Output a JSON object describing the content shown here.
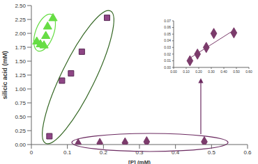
{
  "chart_data": [
    {
      "type": "scatter",
      "xlabel": "[P] (mM)",
      "ylabel": "silicic acid (mM)",
      "xlim": [
        0,
        0.6
      ],
      "xticks": [
        0,
        0.1,
        0.2,
        0.3,
        0.4,
        0.5,
        0.6
      ],
      "ylim": [
        0,
        2.5
      ],
      "yticks": [
        {
          "value": 0,
          "label": "0.00"
        },
        {
          "value": 0.25,
          "label": "0.25"
        },
        {
          "value": 0.5,
          "label": "0.50"
        },
        {
          "value": 0.75,
          "label": "0.75"
        },
        {
          "value": 1,
          "label": "1.00"
        },
        {
          "value": 1.25,
          "label": "1.25"
        },
        {
          "value": 1.5,
          "label": "1.50"
        },
        {
          "value": 1.75,
          "label": "1.75"
        },
        {
          "value": 2,
          "label": "2.00"
        },
        {
          "value": 2.25,
          "label": "2.25"
        },
        {
          "value": 2.5,
          "label": "2.50"
        }
      ],
      "grid": false,
      "series": [
        {
          "color": "#66dd44",
          "marker": "triangle",
          "x": [
            0.015,
            0.025,
            0.035,
            0.04,
            0.045,
            0.06
          ],
          "values": [
            1.85,
            1.8,
            1.78,
            1.95,
            2.12,
            2.27
          ]
        },
        {
          "color": "#8e4585",
          "marker": "square",
          "x": [
            0.05,
            0.085,
            0.11,
            0.14,
            0.21
          ],
          "values": [
            0.15,
            1.15,
            1.28,
            1.67,
            2.28
          ]
        },
        {
          "color": "#7b3b6b",
          "marker": "diamond",
          "x": [
            0.13,
            0.19,
            0.26,
            0.32,
            0.48
          ],
          "values": [
            0.01,
            0.02,
            0.03,
            0.05,
            0.05
          ]
        }
      ]
    },
    {
      "type": "scatter",
      "xlim": [
        0,
        0.6
      ],
      "xticks": [
        {
          "value": 0,
          "label": "0.00"
        },
        {
          "value": 0.1,
          "label": "0.10"
        },
        {
          "value": 0.2,
          "label": "0.20"
        },
        {
          "value": 0.3,
          "label": "0.30"
        },
        {
          "value": 0.4,
          "label": "0.40"
        },
        {
          "value": 0.5,
          "label": "0.50"
        },
        {
          "value": 0.6,
          "label": "0.60"
        }
      ],
      "ylim": [
        0,
        0.07
      ],
      "yticks": [
        {
          "value": 0,
          "label": "0.00"
        },
        {
          "value": 0.01,
          "label": "0.01"
        },
        {
          "value": 0.02,
          "label": "0.02"
        },
        {
          "value": 0.03,
          "label": "0.03"
        },
        {
          "value": 0.04,
          "label": "0.04"
        },
        {
          "value": 0.05,
          "label": "0.05"
        },
        {
          "value": 0.06,
          "label": "0.06"
        },
        {
          "value": 0.07,
          "label": "0.07"
        }
      ],
      "grid": false,
      "series": [
        {
          "color": "#7b3b6b",
          "marker": "diamond",
          "x": [
            0.13,
            0.19,
            0.26,
            0.32,
            0.48
          ],
          "values": [
            0.01,
            0.02,
            0.03,
            0.051,
            0.052
          ]
        },
        {
          "type": "line",
          "line_style": "solid",
          "color": "#7b3b6b",
          "x": [
            0.13,
            0.48
          ],
          "values": [
            0.014,
            0.056
          ]
        }
      ]
    }
  ]
}
